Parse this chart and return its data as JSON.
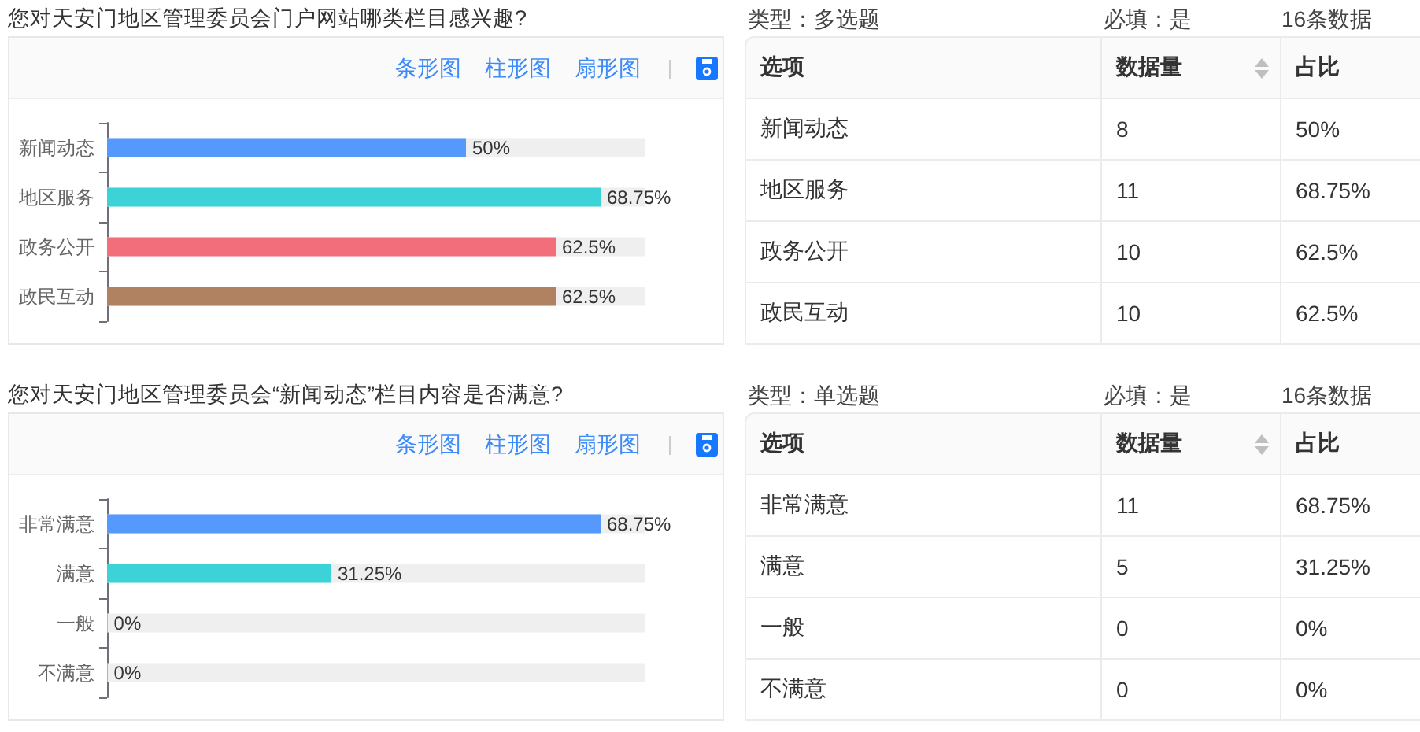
{
  "chart_data": [
    {
      "type": "bar",
      "orientation": "horizontal",
      "title": "您对天安门地区管理委员会门户网站哪类栏目感兴趣?",
      "categories": [
        "新闻动态",
        "地区服务",
        "政务公开",
        "政民互动"
      ],
      "values": [
        50,
        68.75,
        62.5,
        62.5
      ],
      "colors": [
        "#5599fd",
        "#3bd3d8",
        "#f36e7b",
        "#b08262"
      ],
      "value_labels": [
        "50%",
        "68.75%",
        "62.5%",
        "62.5%"
      ],
      "xlim": [
        0,
        75
      ],
      "tick_labels": "y",
      "annotations": [
        "条形图",
        "柱形图",
        "扇形图"
      ]
    },
    {
      "type": "other",
      "xlabel": "选项",
      "categories": [
        "新闻动态",
        "地区服务",
        "政务公开",
        "政民互动"
      ],
      "data_labels": true,
      "series": [
        {
          "name": "数据量",
          "values": [
            8,
            11,
            10,
            10
          ]
        },
        {
          "name": "占比",
          "values": [
            50,
            68.75,
            62.5,
            62.5
          ],
          "value_labels": [
            "50%",
            "68.75%",
            "62.5%",
            "62.5%"
          ]
        }
      ],
      "annotations": [
        "类型：多选题",
        "必填：是",
        "16条数据"
      ]
    },
    {
      "type": "bar",
      "orientation": "horizontal",
      "title": "您对天安门地区管理委员会“新闻动态”栏目内容是否满意?",
      "categories": [
        "非常满意",
        "满意",
        "一般",
        "不满意"
      ],
      "values": [
        68.75,
        31.25,
        0,
        0
      ],
      "colors": [
        "#5599fd",
        "#3bd3d8",
        "#f36e7b",
        "#b08262"
      ],
      "value_labels": [
        "68.75%",
        "31.25%",
        "0%",
        "0%"
      ],
      "xlim": [
        0,
        75
      ],
      "tick_labels": "y",
      "annotations": [
        "条形图",
        "柱形图",
        "扇形图"
      ]
    },
    {
      "type": "other",
      "xlabel": "选项",
      "categories": [
        "非常满意",
        "满意",
        "一般",
        "不满意"
      ],
      "data_labels": true,
      "series": [
        {
          "name": "数据量",
          "values": [
            11,
            5,
            0,
            0
          ]
        },
        {
          "name": "占比",
          "values": [
            68.75,
            31.25,
            0,
            0
          ],
          "value_labels": [
            "68.75%",
            "31.25%",
            "0%",
            "0%"
          ]
        }
      ],
      "annotations": [
        "类型：单选题",
        "必填：是",
        "16条数据"
      ]
    }
  ]
}
